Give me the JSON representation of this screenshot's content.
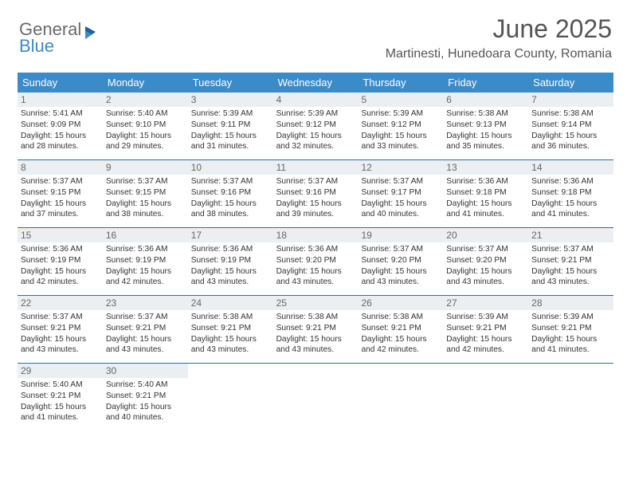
{
  "logo": {
    "general": "General",
    "blue": "Blue"
  },
  "title": "June 2025",
  "location": "Martinesti, Hunedoara County, Romania",
  "colors": {
    "header_bg": "#3b8bc9",
    "row_border": "#2f6ca3",
    "daynum_bg": "#eceff1",
    "text": "#333333",
    "muted": "#666666"
  },
  "calendar": {
    "day_labels": [
      "Sunday",
      "Monday",
      "Tuesday",
      "Wednesday",
      "Thursday",
      "Friday",
      "Saturday"
    ],
    "weeks": [
      [
        {
          "n": "1",
          "sr": "5:41 AM",
          "ss": "9:09 PM",
          "dl": "15 hours and 28 minutes."
        },
        {
          "n": "2",
          "sr": "5:40 AM",
          "ss": "9:10 PM",
          "dl": "15 hours and 29 minutes."
        },
        {
          "n": "3",
          "sr": "5:39 AM",
          "ss": "9:11 PM",
          "dl": "15 hours and 31 minutes."
        },
        {
          "n": "4",
          "sr": "5:39 AM",
          "ss": "9:12 PM",
          "dl": "15 hours and 32 minutes."
        },
        {
          "n": "5",
          "sr": "5:39 AM",
          "ss": "9:12 PM",
          "dl": "15 hours and 33 minutes."
        },
        {
          "n": "6",
          "sr": "5:38 AM",
          "ss": "9:13 PM",
          "dl": "15 hours and 35 minutes."
        },
        {
          "n": "7",
          "sr": "5:38 AM",
          "ss": "9:14 PM",
          "dl": "15 hours and 36 minutes."
        }
      ],
      [
        {
          "n": "8",
          "sr": "5:37 AM",
          "ss": "9:15 PM",
          "dl": "15 hours and 37 minutes."
        },
        {
          "n": "9",
          "sr": "5:37 AM",
          "ss": "9:15 PM",
          "dl": "15 hours and 38 minutes."
        },
        {
          "n": "10",
          "sr": "5:37 AM",
          "ss": "9:16 PM",
          "dl": "15 hours and 38 minutes."
        },
        {
          "n": "11",
          "sr": "5:37 AM",
          "ss": "9:16 PM",
          "dl": "15 hours and 39 minutes."
        },
        {
          "n": "12",
          "sr": "5:37 AM",
          "ss": "9:17 PM",
          "dl": "15 hours and 40 minutes."
        },
        {
          "n": "13",
          "sr": "5:36 AM",
          "ss": "9:18 PM",
          "dl": "15 hours and 41 minutes."
        },
        {
          "n": "14",
          "sr": "5:36 AM",
          "ss": "9:18 PM",
          "dl": "15 hours and 41 minutes."
        }
      ],
      [
        {
          "n": "15",
          "sr": "5:36 AM",
          "ss": "9:19 PM",
          "dl": "15 hours and 42 minutes."
        },
        {
          "n": "16",
          "sr": "5:36 AM",
          "ss": "9:19 PM",
          "dl": "15 hours and 42 minutes."
        },
        {
          "n": "17",
          "sr": "5:36 AM",
          "ss": "9:19 PM",
          "dl": "15 hours and 43 minutes."
        },
        {
          "n": "18",
          "sr": "5:36 AM",
          "ss": "9:20 PM",
          "dl": "15 hours and 43 minutes."
        },
        {
          "n": "19",
          "sr": "5:37 AM",
          "ss": "9:20 PM",
          "dl": "15 hours and 43 minutes."
        },
        {
          "n": "20",
          "sr": "5:37 AM",
          "ss": "9:20 PM",
          "dl": "15 hours and 43 minutes."
        },
        {
          "n": "21",
          "sr": "5:37 AM",
          "ss": "9:21 PM",
          "dl": "15 hours and 43 minutes."
        }
      ],
      [
        {
          "n": "22",
          "sr": "5:37 AM",
          "ss": "9:21 PM",
          "dl": "15 hours and 43 minutes."
        },
        {
          "n": "23",
          "sr": "5:37 AM",
          "ss": "9:21 PM",
          "dl": "15 hours and 43 minutes."
        },
        {
          "n": "24",
          "sr": "5:38 AM",
          "ss": "9:21 PM",
          "dl": "15 hours and 43 minutes."
        },
        {
          "n": "25",
          "sr": "5:38 AM",
          "ss": "9:21 PM",
          "dl": "15 hours and 43 minutes."
        },
        {
          "n": "26",
          "sr": "5:38 AM",
          "ss": "9:21 PM",
          "dl": "15 hours and 42 minutes."
        },
        {
          "n": "27",
          "sr": "5:39 AM",
          "ss": "9:21 PM",
          "dl": "15 hours and 42 minutes."
        },
        {
          "n": "28",
          "sr": "5:39 AM",
          "ss": "9:21 PM",
          "dl": "15 hours and 41 minutes."
        }
      ],
      [
        {
          "n": "29",
          "sr": "5:40 AM",
          "ss": "9:21 PM",
          "dl": "15 hours and 41 minutes."
        },
        {
          "n": "30",
          "sr": "5:40 AM",
          "ss": "9:21 PM",
          "dl": "15 hours and 40 minutes."
        },
        null,
        null,
        null,
        null,
        null
      ]
    ]
  },
  "labels": {
    "sunrise": "Sunrise: ",
    "sunset": "Sunset: ",
    "daylight": "Daylight: "
  }
}
